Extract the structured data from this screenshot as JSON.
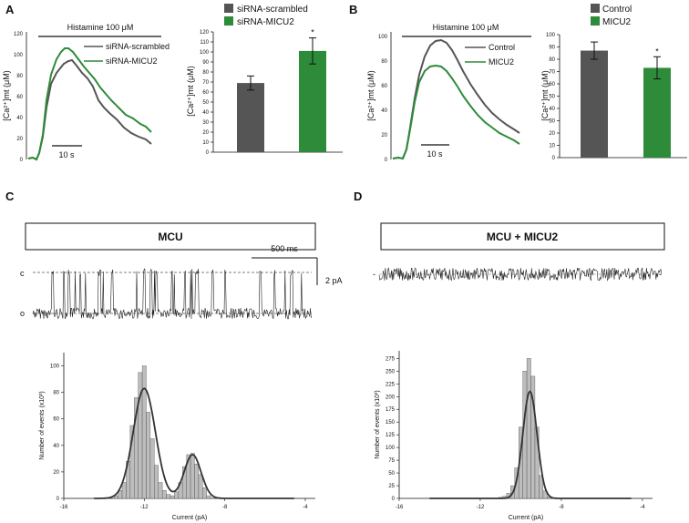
{
  "panels": {
    "A": "A",
    "B": "B",
    "C": "C",
    "D": "D"
  },
  "colors": {
    "grey": "#555555",
    "green": "#2e8b3a",
    "hist": "#bdbdbd",
    "fit": "#333333",
    "trace": "#222222"
  },
  "traceA": {
    "stim": "Histamine 100 μM",
    "ylabel": "[Ca²⁺]mt (μM)",
    "yticks": [
      "0",
      "20",
      "40",
      "60",
      "80",
      "100",
      "120"
    ],
    "scalebar": "10 s",
    "legend": [
      "siRNA-scrambled",
      "siRNA-MICU2"
    ]
  },
  "traceB": {
    "stim": "Histamine 100 μM",
    "ylabel": "[Ca²⁺]mt (μM)",
    "yticks": [
      "0",
      "20",
      "40",
      "60",
      "80",
      "100"
    ],
    "scalebar": "10 s",
    "legend": [
      "Control",
      "MICU2"
    ]
  },
  "scaleC": {
    "time": "500 ms",
    "amp": "2 pA",
    "closed": "c",
    "open": "o"
  },
  "scaleD": {
    "level": "-"
  },
  "boxes": {
    "C": "MCU",
    "D": "MCU + MICU2"
  },
  "chart_data": [
    {
      "type": "bar",
      "panel": "A",
      "categories": [
        "siRNA-scrambled",
        "siRNA-MICU2"
      ],
      "values": [
        69,
        101
      ],
      "errors": [
        7,
        13
      ],
      "significance": [
        "",
        "*"
      ],
      "ylabel": "[Ca²⁺]mt (μM)",
      "ylim": [
        0,
        120
      ],
      "yticks": [
        "0",
        "10",
        "20",
        "30",
        "40",
        "50",
        "60",
        "70",
        "80",
        "90",
        "100",
        "110",
        "120"
      ]
    },
    {
      "type": "bar",
      "panel": "B",
      "categories": [
        "Control",
        "MICU2"
      ],
      "values": [
        87,
        73
      ],
      "errors": [
        7,
        9
      ],
      "significance": [
        "",
        "*"
      ],
      "ylabel": "[Ca²⁺]mt (μM)",
      "ylim": [
        0,
        100
      ],
      "yticks": [
        "0",
        "10",
        "20",
        "30",
        "40",
        "50",
        "60",
        "70",
        "80",
        "90",
        "100"
      ]
    },
    {
      "type": "bar",
      "panel": "C",
      "subtype": "histogram",
      "xlabel": "Current (pA)",
      "ylabel": "Number of events (x10³)",
      "xlim": [
        -16,
        -3.5
      ],
      "ylim": [
        0,
        110
      ],
      "xticks": [
        "-16",
        "-12",
        "-8",
        "-4"
      ],
      "yticks": [
        "0",
        "20",
        "40",
        "60",
        "80",
        "100"
      ],
      "bin_centers": [
        -13.4,
        -13.2,
        -13.0,
        -12.8,
        -12.6,
        -12.4,
        -12.2,
        -12.0,
        -11.8,
        -11.6,
        -11.4,
        -11.2,
        -11.0,
        -10.8,
        -10.6,
        -10.4,
        -10.2,
        -10.0,
        -9.8,
        -9.6,
        -9.4,
        -9.2,
        -9.0,
        -8.8
      ],
      "counts": [
        2,
        6,
        12,
        28,
        55,
        76,
        95,
        100,
        65,
        45,
        25,
        12,
        6,
        3,
        2,
        5,
        12,
        24,
        33,
        34,
        26,
        18,
        8,
        2
      ],
      "fit_components": [
        {
          "amplitude": 83,
          "mean": -12.0,
          "sd": 0.55
        },
        {
          "amplitude": 33,
          "mean": -9.6,
          "sd": 0.42
        }
      ]
    },
    {
      "type": "bar",
      "panel": "D",
      "subtype": "histogram",
      "xlabel": "Current (pA)",
      "ylabel": "Number of events (x10³)",
      "xlim": [
        -16,
        -3.5
      ],
      "ylim": [
        0,
        290
      ],
      "xticks": [
        "-16",
        "-12",
        "-8",
        "-4"
      ],
      "yticks": [
        "0",
        "25",
        "50",
        "75",
        "100",
        "125",
        "150",
        "175",
        "200",
        "225",
        "250",
        "275"
      ],
      "bin_centers": [
        -11.0,
        -10.8,
        -10.6,
        -10.4,
        -10.2,
        -10.0,
        -9.8,
        -9.6,
        -9.4,
        -9.2,
        -9.0,
        -8.8,
        -8.6
      ],
      "counts": [
        2,
        4,
        10,
        25,
        60,
        140,
        250,
        275,
        240,
        140,
        45,
        15,
        3
      ],
      "fit_components": [
        {
          "amplitude": 210,
          "mean": -9.55,
          "sd": 0.35
        }
      ]
    }
  ]
}
